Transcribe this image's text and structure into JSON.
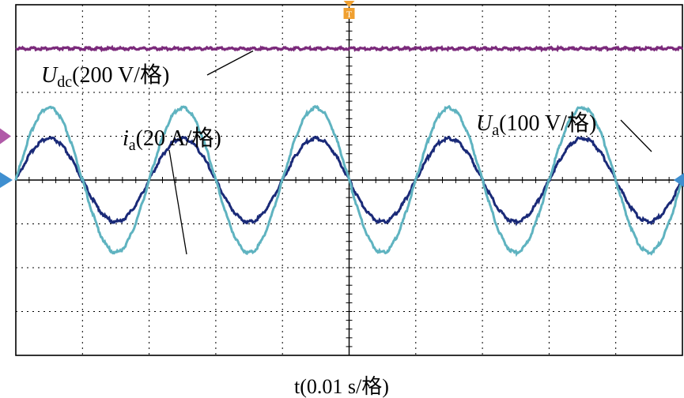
{
  "chart_data": {
    "type": "line",
    "xlabel": "t(0.01 s/格)",
    "x_unit": "s",
    "x_scale_per_div": 0.01,
    "x_divisions": 10,
    "y_divisions": 8,
    "grid": true,
    "annotations": [
      {
        "series": "Udc",
        "main": "U",
        "sub": "dc",
        "rest": "(200 V/格)"
      },
      {
        "series": "ia",
        "main": "i",
        "sub": "a",
        "rest": "(20 A/格)"
      },
      {
        "series": "Ua",
        "main": "U",
        "sub": "a",
        "rest": "(100 V/格)"
      }
    ],
    "series": [
      {
        "key": "Udc",
        "kind": "dc",
        "scale_per_div": 200,
        "unit": "V",
        "level_div": 3.0,
        "color": "#7b2a7b",
        "marker_color": "#b05aa8",
        "marker_level_div": 1.0
      },
      {
        "key": "ia",
        "kind": "sine",
        "scale_per_div": 20,
        "unit": "A",
        "amplitude_div": 0.95,
        "amplitude": 19,
        "frequency_hz": 50,
        "color": "#1a2a78"
      },
      {
        "key": "Ua",
        "kind": "sine",
        "scale_per_div": 100,
        "unit": "V",
        "amplitude_div": 1.65,
        "amplitude": 165,
        "frequency_hz": 50,
        "color": "#5fb3c0"
      }
    ],
    "reference_marker_color": "#3f8fd0",
    "trigger_marker_color": "#f0a030",
    "trigger_marker_label": "T"
  }
}
